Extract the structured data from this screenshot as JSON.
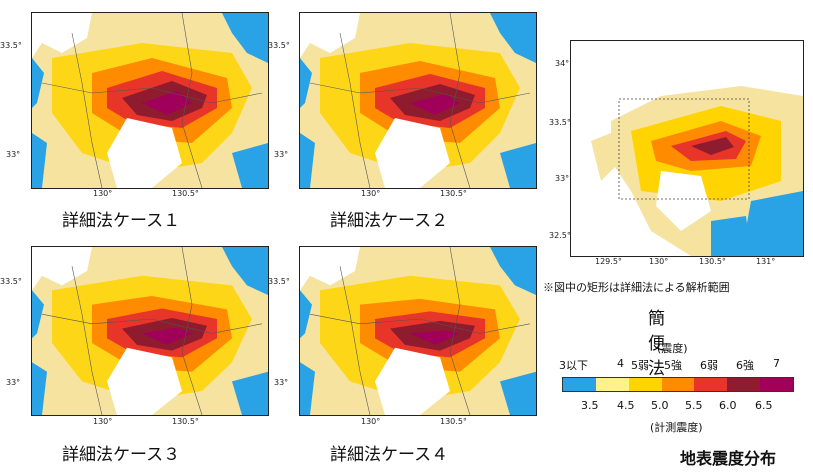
{
  "detailed_cases": [
    {
      "caption": "詳細法ケース１",
      "lat_ticks": [
        "33.5°",
        "33°"
      ],
      "lon_ticks": [
        "130°",
        "130.5°"
      ]
    },
    {
      "caption": "詳細法ケース２",
      "lat_ticks": [
        "33.5°",
        "33°"
      ],
      "lon_ticks": [
        "130°",
        "130.5°"
      ]
    },
    {
      "caption": "詳細法ケース３",
      "lat_ticks": [
        "33.5°",
        "33°"
      ],
      "lon_ticks": [
        "130°",
        "130.5°"
      ]
    },
    {
      "caption": "詳細法ケース４",
      "lat_ticks": [
        "33.5°",
        "33°"
      ],
      "lon_ticks": [
        "130°",
        "130.5°"
      ]
    }
  ],
  "simple_method": {
    "caption": "簡便法",
    "lat_ticks": [
      "34°",
      "33.5°",
      "33°",
      "32.5°"
    ],
    "lon_ticks": [
      "129.5°",
      "130°",
      "130.5°",
      "131°"
    ],
    "note": "※図中の矩形は詳細法による解析範囲"
  },
  "legend": {
    "title": "(震度)",
    "intensity_labels": [
      "3以下",
      "4",
      "5弱",
      "5強",
      "6弱",
      "6強",
      "7"
    ],
    "colors": [
      "#29a3e6",
      "#fff28a",
      "#ffd400",
      "#ff8c00",
      "#e8352a",
      "#8e1b2e",
      "#a0005a"
    ],
    "numeric_labels": [
      "3.5",
      "4.5",
      "5.0",
      "5.5",
      "6.0",
      "6.5"
    ],
    "subtitle": "(計測震度)"
  },
  "figure_title": "地表震度分布",
  "map_colors": {
    "land_base": "#f6e3a0",
    "sea": "#ffffff",
    "low": "#29a3e6",
    "yellow": "#ffd400",
    "orange": "#ff8c00",
    "red": "#e8352a",
    "darkred": "#8e1b2e",
    "purple": "#a0005a"
  }
}
